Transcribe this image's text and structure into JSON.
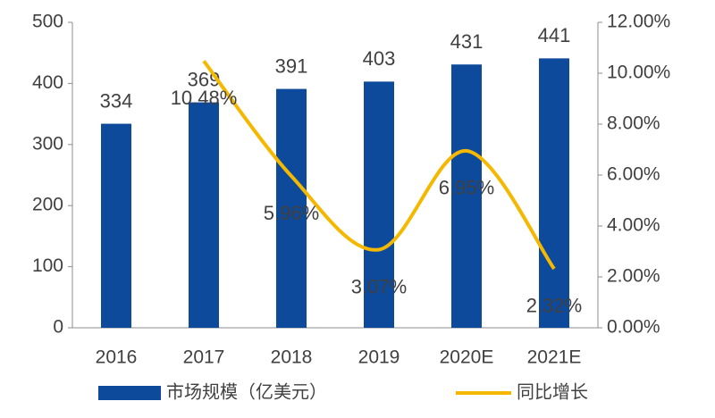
{
  "chart_data": {
    "type": "bar_line",
    "categories": [
      "2016",
      "2017",
      "2018",
      "2019",
      "2020E",
      "2021E"
    ],
    "series": [
      {
        "name": "市场规模（亿美元）",
        "type": "bar",
        "color": "#0e4a9c",
        "values": [
          334,
          369,
          391,
          403,
          431,
          441
        ]
      },
      {
        "name": "同比增长",
        "type": "line",
        "axis": "y2",
        "color": "#f5b800",
        "values": [
          null,
          10.48,
          5.96,
          3.07,
          6.95,
          2.32
        ],
        "value_labels": [
          null,
          "10.48%",
          "5.96%",
          "3.07%",
          "6.95%",
          "2.32%"
        ]
      }
    ],
    "ylim": [
      0,
      500
    ],
    "yticks": [
      0,
      100,
      200,
      300,
      400,
      500
    ],
    "y2lim": [
      0,
      12
    ],
    "y2ticks": [
      {
        "value": 0,
        "label": "0.00%"
      },
      {
        "value": 2,
        "label": "2.00%"
      },
      {
        "value": 4,
        "label": "4.00%"
      },
      {
        "value": 6,
        "label": "6.00%"
      },
      {
        "value": 8,
        "label": "8.00%"
      },
      {
        "value": 10,
        "label": "10.00%"
      },
      {
        "value": 12,
        "label": "12.00%"
      }
    ],
    "grid": false,
    "legend": "bottom"
  }
}
